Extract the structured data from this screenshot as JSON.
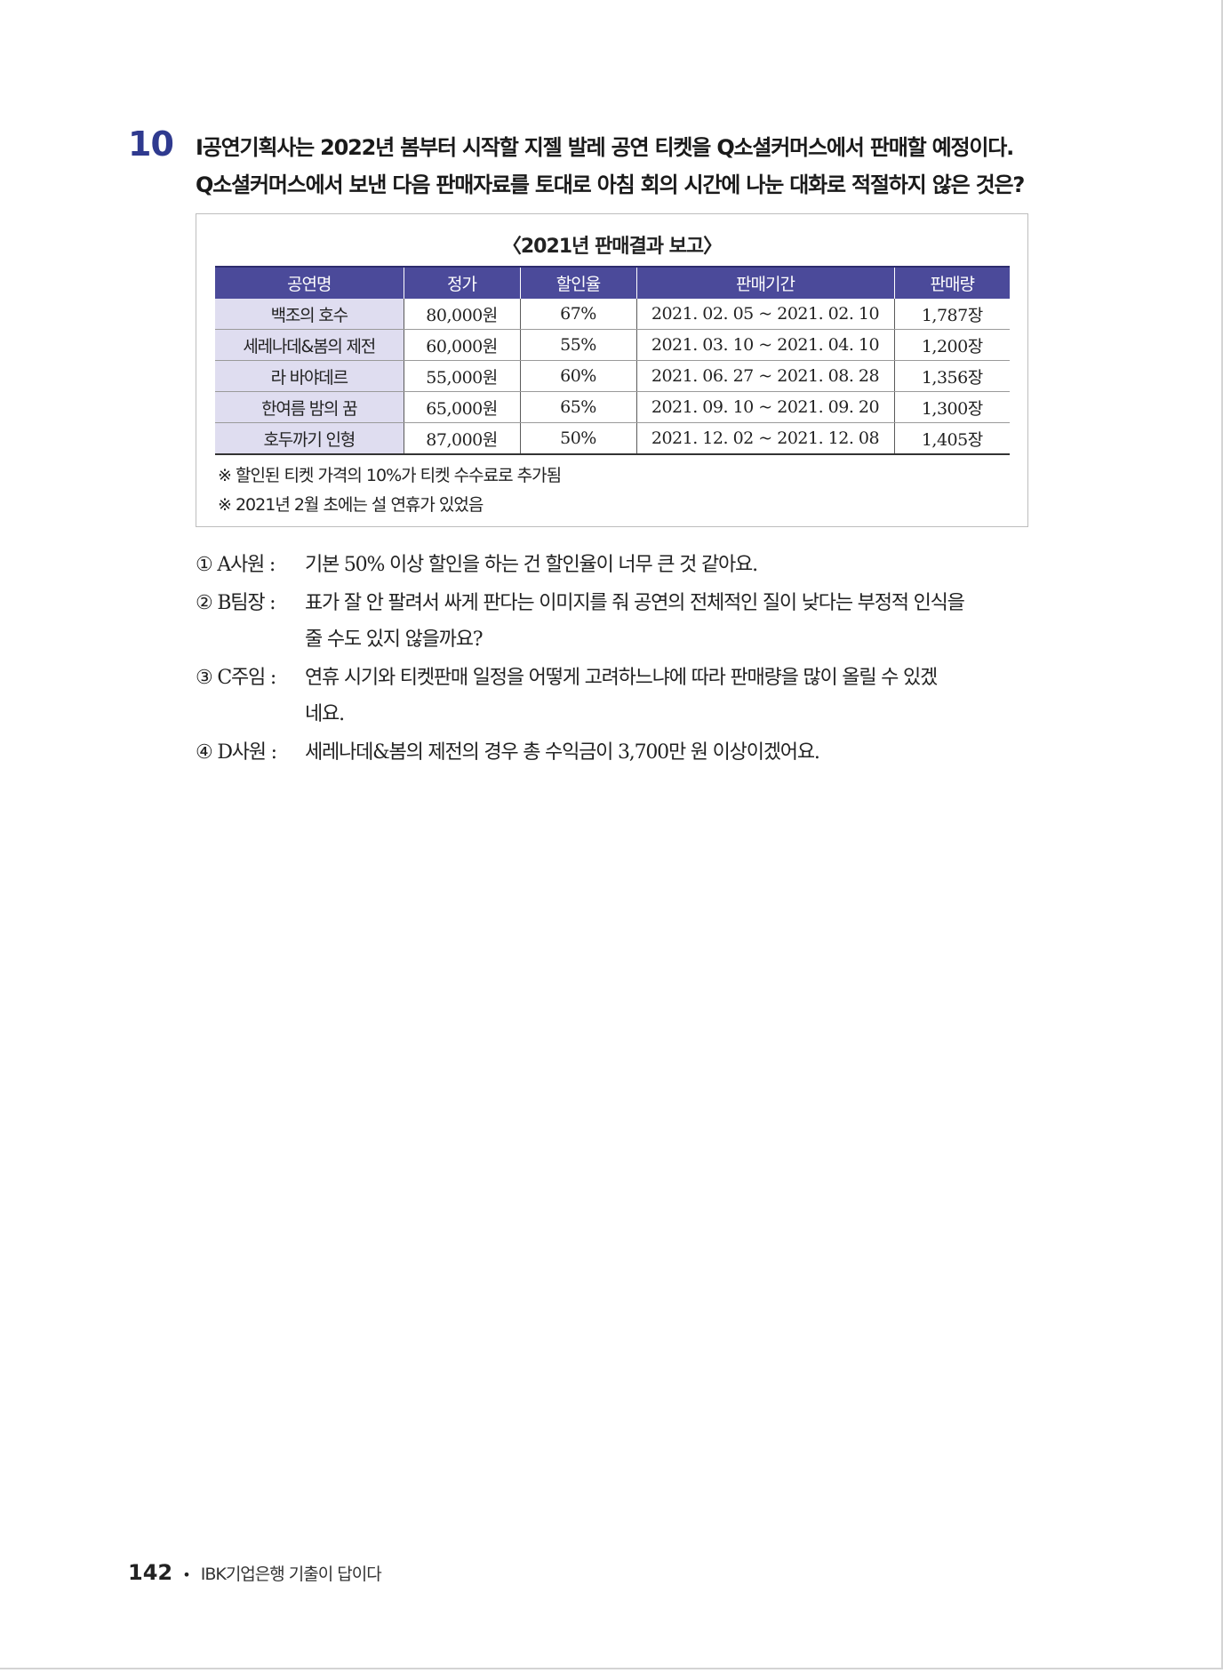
{
  "question": {
    "number": "10",
    "line1": "I공연기획사는 2022년 봄부터 시작할 지젤 발레 공연 티켓을 Q소셜커머스에서 판매할 예정이다.",
    "line2": "Q소셜커머스에서 보낸 다음 판매자료를 토대로 아침 회의 시간에 나눈 대화로 적절하지 않은 것은?"
  },
  "report": {
    "title": "〈2021년 판매결과 보고〉",
    "headers": [
      "공연명",
      "정가",
      "할인율",
      "판매기간",
      "판매량"
    ],
    "rows": [
      [
        "백조의 호수",
        "80,000원",
        "67%",
        "2021. 02. 05 ~ 2021. 02. 10",
        "1,787장"
      ],
      [
        "세레나데&봄의 제전",
        "60,000원",
        "55%",
        "2021. 03. 10 ~ 2021. 04. 10",
        "1,200장"
      ],
      [
        "라 바야데르",
        "55,000원",
        "60%",
        "2021. 06. 27 ~ 2021. 08. 28",
        "1,356장"
      ],
      [
        "한여름 밤의 꿈",
        "65,000원",
        "65%",
        "2021. 09. 10 ~ 2021. 09. 20",
        "1,300장"
      ],
      [
        "호두까기 인형",
        "87,000원",
        "50%",
        "2021. 12. 02 ~ 2021. 12. 08",
        "1,405장"
      ]
    ],
    "notes": [
      "※ 할인된 티켓 가격의 10%가 티켓 수수료로 추가됨",
      "※ 2021년 2월 초에는 설 연휴가 있었음"
    ]
  },
  "options": [
    {
      "head": "① A사원 :",
      "lines": [
        "기본 50% 이상 할인을 하는 건 할인율이 너무 큰 것 같아요."
      ]
    },
    {
      "head": "② B팀장 :",
      "lines": [
        "표가 잘 안 팔려서 싸게 판다는 이미지를 줘 공연의 전체적인 질이 낮다는 부정적 인식을",
        "줄 수도 있지 않을까요?"
      ]
    },
    {
      "head": "③ C주임 :",
      "lines": [
        "연휴 시기와 티켓판매 일정을 어떻게 고려하느냐에 따라 판매량을 많이 올릴 수 있겠",
        "네요."
      ]
    },
    {
      "head": "④ D사원 :",
      "lines": [
        "세레나데&봄의 제전의 경우 총 수익금이 3,700만 원 이상이겠어요."
      ]
    }
  ],
  "footer": {
    "page": "142",
    "bullet": "•",
    "book": "IBK기업은행 기출이 답이다"
  }
}
